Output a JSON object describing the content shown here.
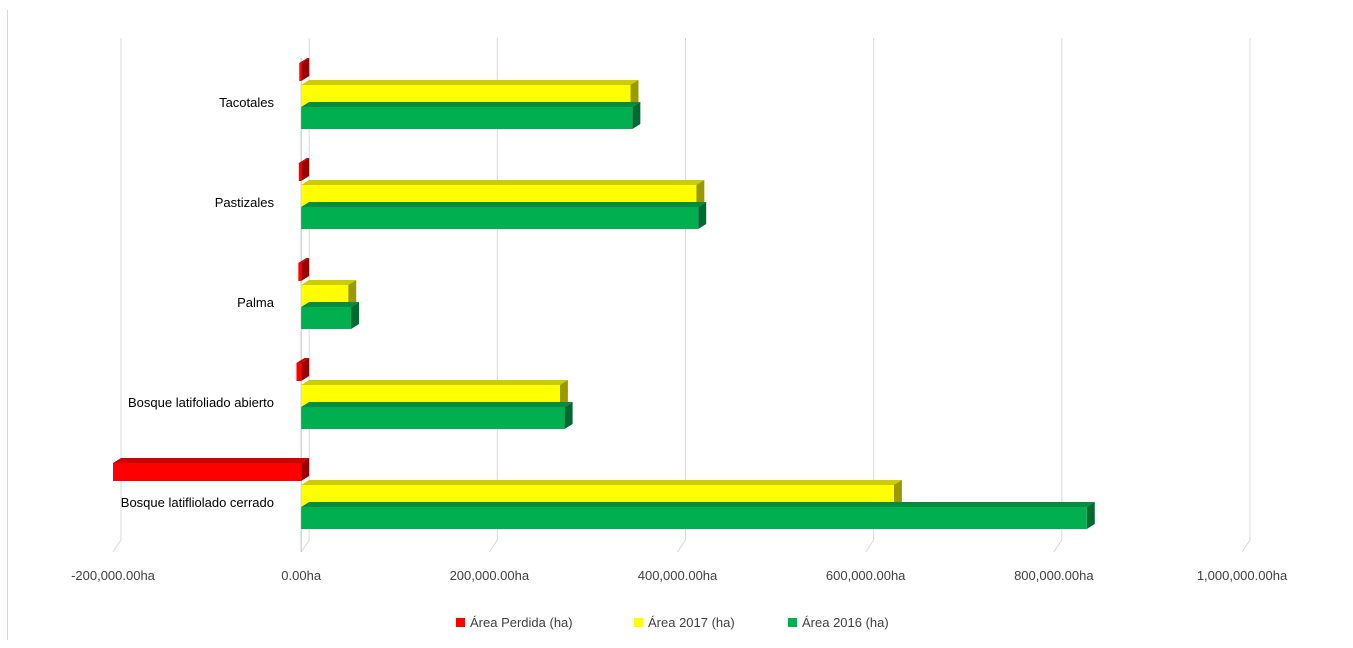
{
  "chart_data": {
    "type": "bar",
    "orientation": "horizontal",
    "categories": [
      "Tacotales",
      "Pastizales",
      "Palma",
      "Bosque latifoliado abierto",
      "Bosque latifliolado cerrado"
    ],
    "series": [
      {
        "name": "Área Perdida (ha)",
        "color": "#ff0000",
        "values": [
          -2000,
          -2500,
          -3000,
          -5000,
          -200000
        ]
      },
      {
        "name": "Área 2017 (ha)",
        "color": "#ffff00",
        "values": [
          350000,
          420000,
          50000,
          275000,
          630000
        ]
      },
      {
        "name": "Área 2016 (ha)",
        "color": "#00b050",
        "values": [
          352000,
          422000,
          53000,
          280000,
          835000
        ]
      }
    ],
    "x_ticks": [
      "-200,000.00ha",
      "0.00ha",
      "200,000.00ha",
      "400,000.00ha",
      "600,000.00ha",
      "800,000.00ha",
      "1,000,000.00ha"
    ],
    "x_tick_values": [
      -200000,
      0,
      200000,
      400000,
      600000,
      800000,
      1000000
    ],
    "xlim": [
      -200000,
      1000000
    ],
    "grid": true,
    "legend_position": "bottom",
    "style_3d": true
  }
}
